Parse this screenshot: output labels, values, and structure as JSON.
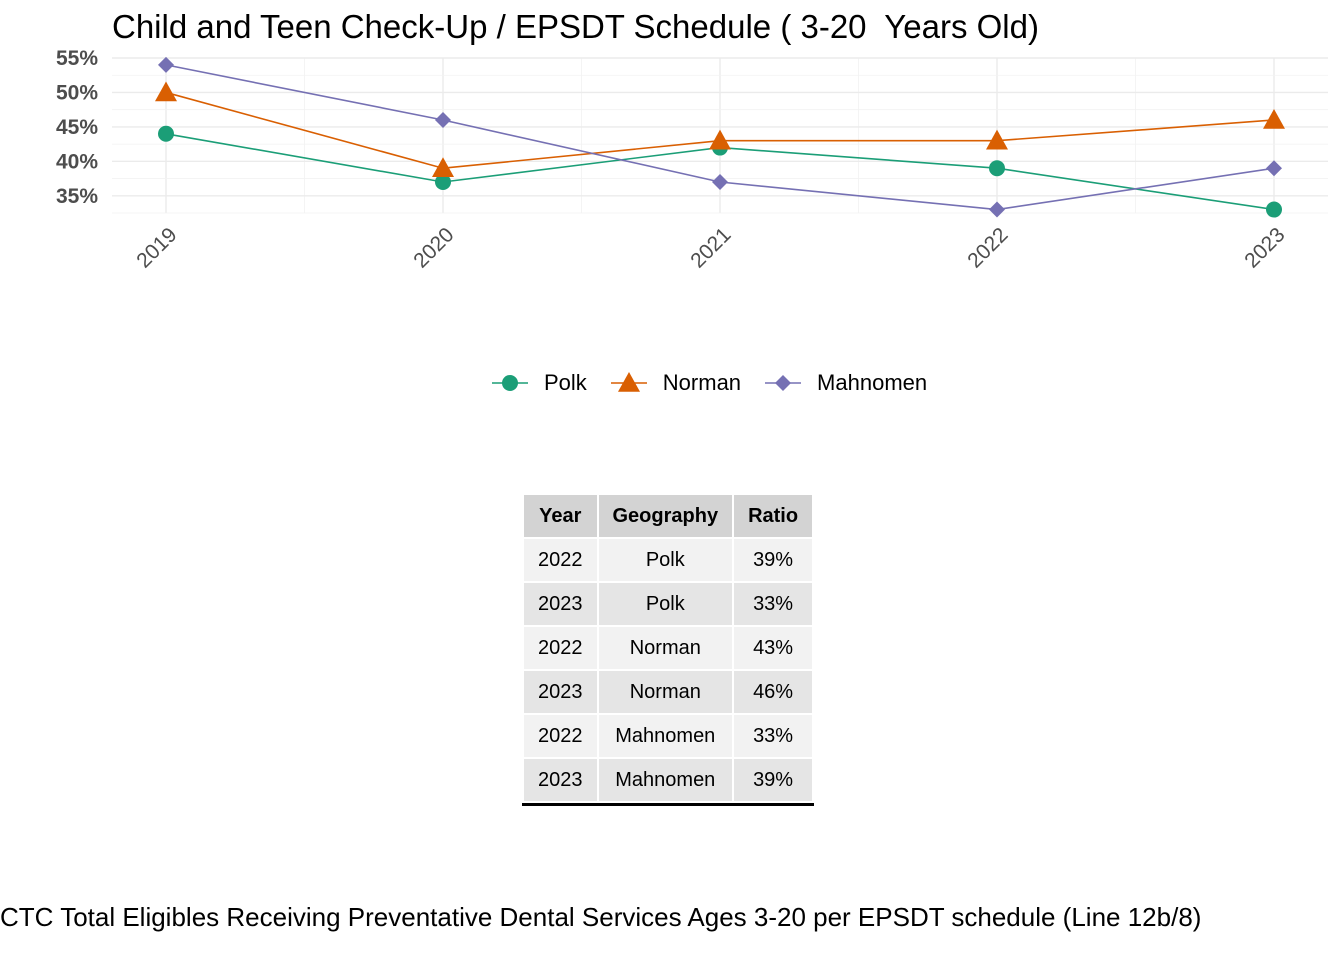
{
  "chart_data": {
    "type": "line",
    "title": "Child and Teen Check-Up / EPSDT Schedule ( 3-20  Years Old)",
    "xlabel": "",
    "ylabel": "",
    "categories": [
      "2019",
      "2020",
      "2021",
      "2022",
      "2023"
    ],
    "yticks": [
      "35%",
      "40%",
      "45%",
      "50%",
      "55%"
    ],
    "ytick_values": [
      0.35,
      0.4,
      0.45,
      0.5,
      0.55
    ],
    "ylim": [
      0.325,
      0.55
    ],
    "grid": true,
    "legend_position": "bottom",
    "series": [
      {
        "name": "Polk",
        "values": [
          0.44,
          0.37,
          0.42,
          0.39,
          0.33
        ],
        "color": "#1b9e77",
        "marker": "circle"
      },
      {
        "name": "Norman",
        "values": [
          0.5,
          0.39,
          0.43,
          0.43,
          0.46
        ],
        "color": "#d95f02",
        "marker": "triangle"
      },
      {
        "name": "Mahnomen",
        "values": [
          0.54,
          0.46,
          0.37,
          0.33,
          0.39
        ],
        "color": "#7570b3",
        "marker": "diamond"
      }
    ]
  },
  "table": {
    "headers": [
      "Year",
      "Geography",
      "Ratio"
    ],
    "rows": [
      [
        "2022",
        "Polk",
        "39%"
      ],
      [
        "2023",
        "Polk",
        "33%"
      ],
      [
        "2022",
        "Norman",
        "43%"
      ],
      [
        "2023",
        "Norman",
        "46%"
      ],
      [
        "2022",
        "Mahnomen",
        "33%"
      ],
      [
        "2023",
        "Mahnomen",
        "39%"
      ]
    ]
  },
  "caption": "CTC Total Eligibles Receiving Preventative Dental Services Ages 3-20 per EPSDT schedule (Line 12b/8)"
}
